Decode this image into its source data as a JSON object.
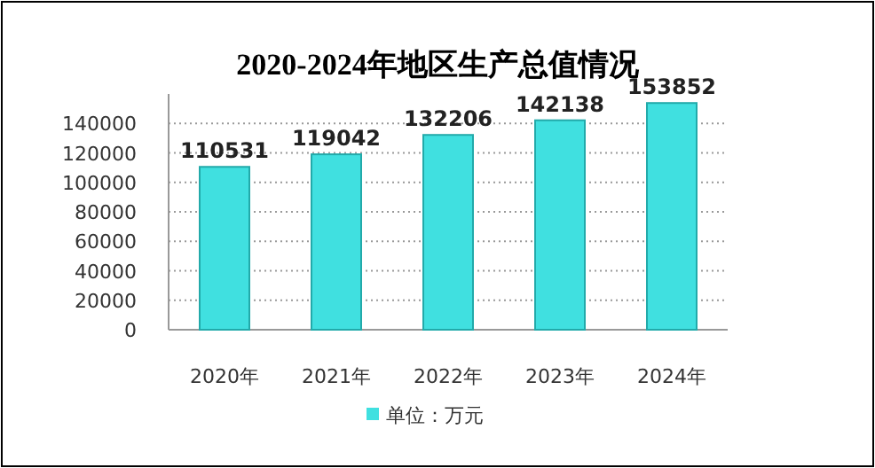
{
  "chart_data": {
    "type": "bar",
    "title": "2020-2024年地区生产总值情况",
    "categories": [
      "2020年",
      "2021年",
      "2022年",
      "2023年",
      "2024年"
    ],
    "series": [
      {
        "name": "单位：万元",
        "color": "#40e0e0",
        "values": [
          110531,
          119042,
          132206,
          142138,
          153852
        ]
      }
    ],
    "ylim": [
      0,
      160000
    ],
    "yticks": [
      0,
      20000,
      40000,
      60000,
      80000,
      100000,
      120000,
      140000
    ],
    "grid": "y",
    "data_labels": true,
    "legend": "bottom"
  }
}
